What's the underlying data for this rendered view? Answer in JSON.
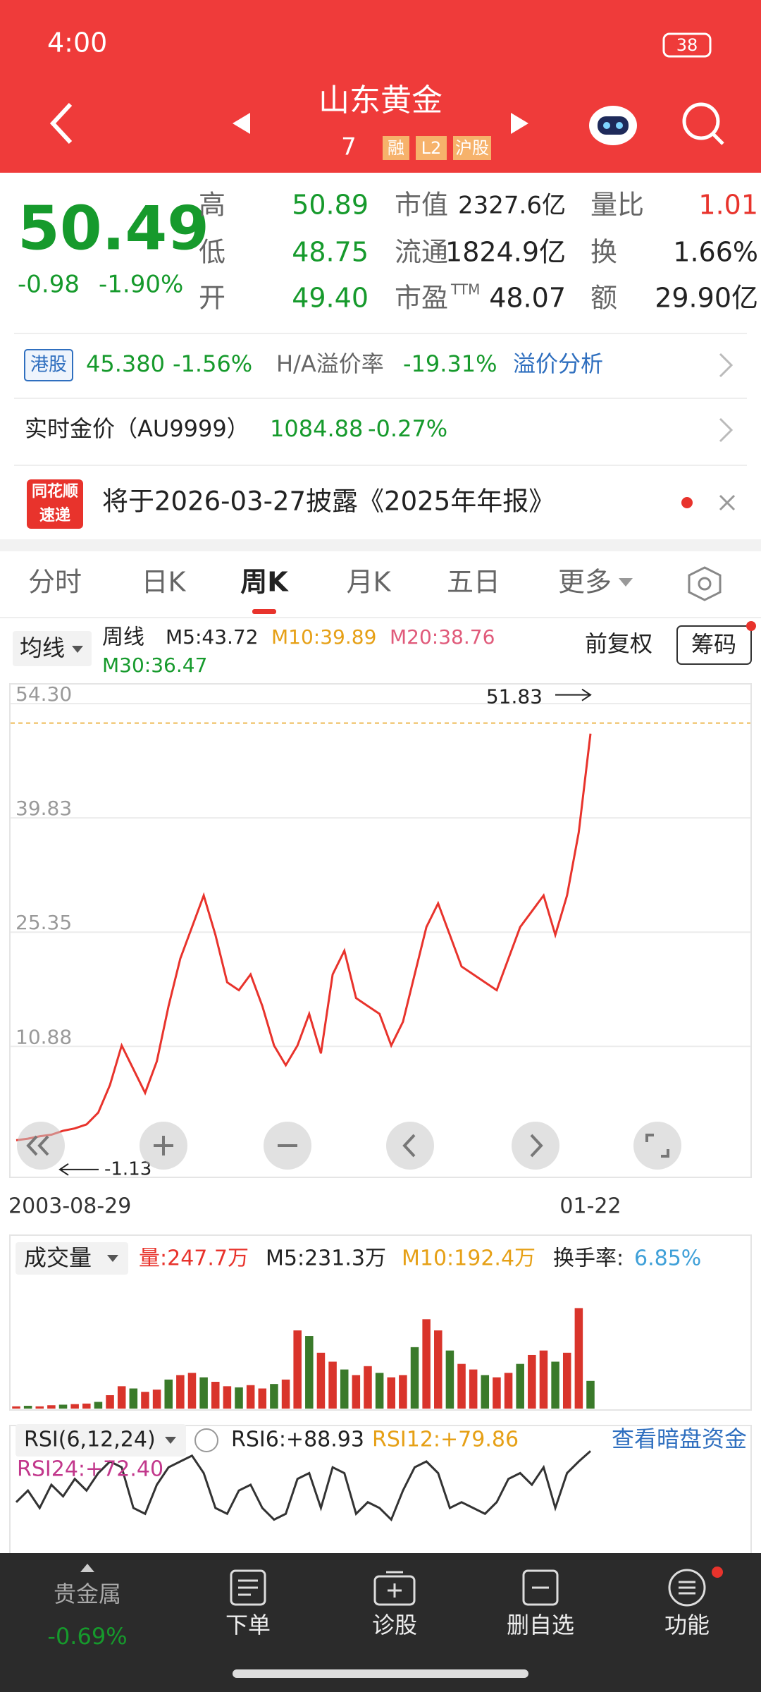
{
  "status": {
    "time": "4:00",
    "battery": "38"
  },
  "header": {
    "title": "山东黄金",
    "code": "7",
    "tags": [
      "融",
      "L2",
      "沪股"
    ]
  },
  "quote": {
    "price": "50.49",
    "change": "-0.98",
    "change_pct": "-1.90%",
    "col1": [
      {
        "label": "高",
        "value": "50.89"
      },
      {
        "label": "低",
        "value": "48.75"
      },
      {
        "label": "开",
        "value": "49.40"
      }
    ],
    "col2": [
      {
        "label": "市值",
        "value": "2327.6亿"
      },
      {
        "label": "流通",
        "value": "1824.9亿"
      },
      {
        "label": "市盈",
        "sup": "TTM",
        "value": "48.07"
      }
    ],
    "col3": [
      {
        "label": "量比",
        "value": "1.01"
      },
      {
        "label": "换",
        "value": "1.66%"
      },
      {
        "label": "额",
        "value": "29.90亿"
      }
    ]
  },
  "hk": {
    "tag": "港股",
    "price": "45.380",
    "change_pct": "-1.56%",
    "premium_label": "H/A溢价率",
    "premium": "-19.31%",
    "link": "溢价分析"
  },
  "gold": {
    "label": "实时金价（AU9999）",
    "price": "1084.88",
    "change_pct": "-0.27%"
  },
  "news": {
    "logo": [
      "同花顺",
      "速递"
    ],
    "text": "将于2026-03-27披露《2025年年报》"
  },
  "tabs": [
    "分时",
    "日K",
    "周K",
    "月K",
    "五日",
    "更多"
  ],
  "indicators": {
    "ma_button": "均线",
    "period": "周线",
    "m5": "M5:43.72",
    "m10": "M10:39.89",
    "m20": "M20:38.76",
    "m30": "M30:36.47",
    "adjust": "前复权",
    "chips": "筹码"
  },
  "volume_header": {
    "button": "成交量",
    "vol": "量:247.7万",
    "m5": "M5:231.3万",
    "m10": "M10:192.4万",
    "turnover_label": "换手率:",
    "turnover": "6.85%"
  },
  "rsi_header": {
    "button": "RSI(6,12,24)",
    "rsi6": "RSI6:+88.93",
    "rsi12": "RSI12:+79.86",
    "rsi24": "RSI24:+72.40",
    "link": "查看暗盘资金"
  },
  "nav": {
    "sector": "贵金属",
    "sector_change": "-0.69%",
    "items": [
      "下单",
      "诊股",
      "删自选",
      "功能"
    ]
  },
  "chart_data": [
    {
      "type": "line",
      "color": "#e8332c",
      "values": [
        -1.0,
        -0.8,
        -0.5,
        -0.3,
        0.2,
        0.5,
        1.0,
        2.5,
        6,
        11,
        8,
        5,
        9,
        16,
        22,
        26,
        30,
        25,
        19,
        18,
        20,
        16,
        11,
        8.5,
        11,
        15,
        10,
        20,
        23,
        17,
        16,
        15,
        11,
        14,
        20,
        26,
        29,
        25,
        21,
        20,
        19,
        18,
        22,
        26,
        28,
        30,
        25,
        30,
        38,
        50.49
      ],
      "ylim": [
        -5.7,
        56.8
      ],
      "yticks": [
        10.88,
        25.35,
        39.83,
        {
          "value": 54.3,
          "label": "54.30"
        }
      ],
      "grid": true,
      "high": 51.83,
      "low": -1.13,
      "x_labels": [
        "2003-08-29",
        "01-22"
      ]
    },
    {
      "type": "bar",
      "color": "#d9342b",
      "values": [
        20,
        25,
        20,
        30,
        35,
        40,
        45,
        60,
        120,
        200,
        180,
        150,
        170,
        260,
        300,
        320,
        280,
        240,
        200,
        190,
        210,
        180,
        220,
        260,
        700,
        650,
        500,
        420,
        350,
        300,
        380,
        320,
        280,
        300,
        550,
        800,
        700,
        520,
        400,
        350,
        300,
        280,
        320,
        400,
        480,
        520,
        420,
        500,
        900,
        247.7
      ],
      "ylim": [
        0,
        1250
      ]
    },
    {
      "type": "line",
      "color": "#333333",
      "values": [
        45,
        55,
        40,
        60,
        50,
        65,
        55,
        70,
        80,
        75,
        40,
        35,
        60,
        75,
        80,
        85,
        70,
        40,
        35,
        55,
        60,
        40,
        30,
        35,
        65,
        70,
        40,
        75,
        70,
        35,
        45,
        40,
        30,
        55,
        75,
        80,
        70,
        40,
        45,
        40,
        35,
        45,
        65,
        70,
        60,
        75,
        40,
        70,
        80,
        88.93
      ],
      "ylim": [
        0,
        100
      ]
    }
  ]
}
